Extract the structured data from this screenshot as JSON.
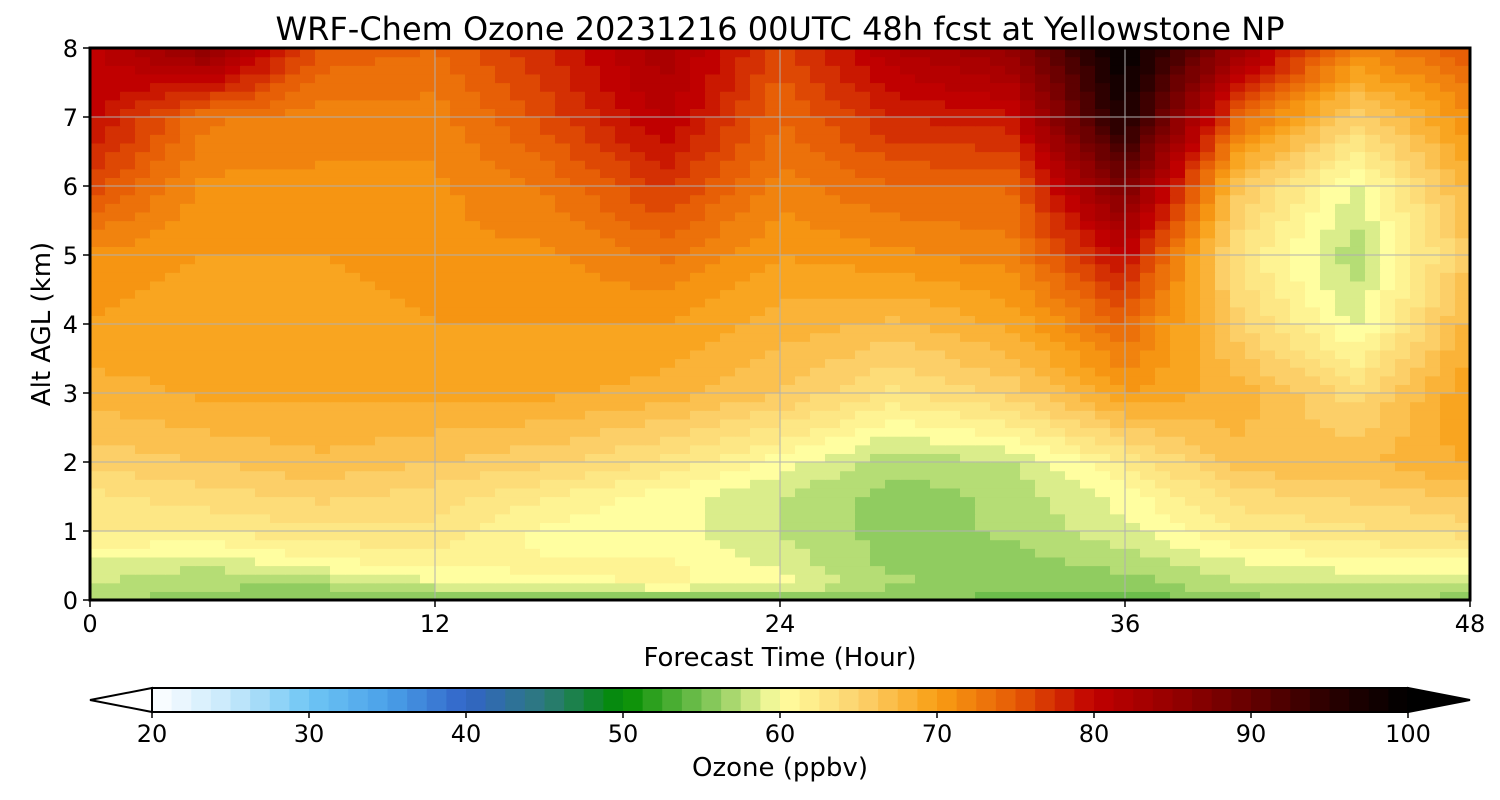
{
  "chart_data": {
    "type": "heatmap",
    "title": "WRF-Chem Ozone  20231216 00UTC 48h fcst at Yellowstone NP",
    "xlabel": "Forecast Time (Hour)",
    "ylabel": "Alt AGL (km)",
    "xlim": [
      0,
      48
    ],
    "ylim": [
      0,
      8
    ],
    "xticks": [
      0,
      12,
      24,
      36,
      48
    ],
    "xtick_labels": [
      "0",
      "12",
      "24",
      "36",
      "48"
    ],
    "yticks": [
      0,
      1,
      2,
      3,
      4,
      5,
      6,
      7,
      8
    ],
    "ytick_labels": [
      "0",
      "1",
      "2",
      "3",
      "4",
      "5",
      "6",
      "7",
      "8"
    ],
    "grid": true,
    "x": [
      0,
      4,
      8,
      12,
      16,
      20,
      24,
      28,
      32,
      36,
      40,
      44,
      48
    ],
    "y": [
      0,
      0.25,
      0.5,
      1,
      1.5,
      2,
      3,
      4,
      5,
      6,
      7,
      8
    ],
    "z": [
      [
        57,
        56,
        55,
        55,
        55,
        55,
        55,
        55,
        55,
        54,
        56,
        57,
        56
      ],
      [
        58,
        57,
        57,
        59,
        60,
        61,
        60,
        57,
        56,
        56,
        58,
        58,
        58
      ],
      [
        59,
        58,
        60,
        61,
        61,
        61,
        59,
        56,
        56,
        57,
        59,
        60,
        60
      ],
      [
        62,
        62,
        63,
        63,
        60,
        60,
        58,
        56,
        57,
        59,
        62,
        63,
        64
      ],
      [
        63,
        64,
        65,
        64,
        62,
        60,
        58,
        56,
        57,
        60,
        64,
        65,
        66
      ],
      [
        65,
        66,
        67,
        66,
        65,
        63,
        60,
        57,
        58,
        62,
        67,
        67,
        69
      ],
      [
        68,
        69,
        69,
        69,
        69,
        68,
        66,
        63,
        65,
        70,
        68,
        64,
        70
      ],
      [
        70,
        69,
        69,
        70,
        70,
        70,
        68,
        67,
        69,
        74,
        65,
        59,
        68
      ],
      [
        71,
        70,
        70,
        71,
        71,
        73,
        70,
        71,
        72,
        80,
        63,
        57,
        66
      ],
      [
        76,
        71,
        71,
        71,
        73,
        77,
        72,
        74,
        74,
        88,
        66,
        59,
        68
      ],
      [
        80,
        73,
        72,
        72,
        76,
        81,
        74,
        78,
        79,
        97,
        74,
        65,
        71
      ],
      [
        80,
        86,
        75,
        74,
        78,
        83,
        76,
        82,
        85,
        100,
        84,
        72,
        75
      ]
    ],
    "colorbar": {
      "label": "Ozone  (ppbv)",
      "min": 20,
      "max": 100,
      "ticks": [
        20,
        30,
        40,
        50,
        60,
        70,
        80,
        90,
        100
      ],
      "tick_labels": [
        "20",
        "30",
        "40",
        "50",
        "60",
        "70",
        "80",
        "90",
        "100"
      ],
      "extend": "both",
      "stops": [
        [
          20,
          "#ffffff"
        ],
        [
          25,
          "#c6e8fb"
        ],
        [
          30,
          "#6ec6f4"
        ],
        [
          35,
          "#4aa0e8"
        ],
        [
          40,
          "#3264c8"
        ],
        [
          45,
          "#2c7a7a"
        ],
        [
          50,
          "#008c00"
        ],
        [
          55,
          "#74c050"
        ],
        [
          60,
          "#fffea0"
        ],
        [
          65,
          "#fcd36e"
        ],
        [
          70,
          "#f99e14"
        ],
        [
          75,
          "#e65a05"
        ],
        [
          80,
          "#c00000"
        ],
        [
          85,
          "#960000"
        ],
        [
          90,
          "#650000"
        ],
        [
          95,
          "#2a0000"
        ],
        [
          100,
          "#000000"
        ]
      ]
    }
  }
}
